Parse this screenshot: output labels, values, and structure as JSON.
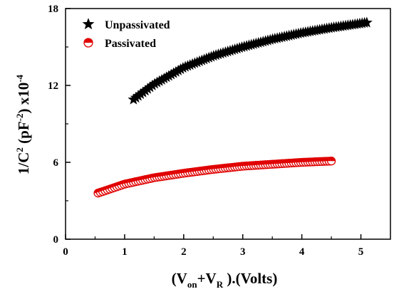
{
  "chart_data": {
    "type": "scatter",
    "xlabel": {
      "pre": "(V",
      "sub1": "on",
      "mid": "+V",
      "sub2": "R",
      "post": " ).(Volts)"
    },
    "ylabel": {
      "pre": "1/C",
      "sup1": "2",
      "mid": " (pF",
      "sup2": "-2",
      "post": ") x10",
      "sup3": "-4"
    },
    "xlim": [
      0,
      5.5
    ],
    "ylim": [
      0,
      18
    ],
    "x_ticks": [
      0,
      1,
      2,
      3,
      4,
      5
    ],
    "y_ticks": [
      0,
      6,
      12,
      18
    ],
    "grid": false,
    "legend_position": "top-left",
    "series": [
      {
        "name": "Unpassivated",
        "marker": "star",
        "color": "#000000",
        "x_start": 1.15,
        "x_end": 5.1,
        "count": 100,
        "x": [
          1.15,
          1.5,
          2.0,
          2.5,
          3.0,
          3.5,
          4.0,
          4.5,
          5.1
        ],
        "y": [
          10.9,
          12.1,
          13.4,
          14.3,
          15.0,
          15.6,
          16.1,
          16.5,
          16.9
        ]
      },
      {
        "name": "Passivated",
        "marker": "half-filled-circle",
        "color": "#e00000",
        "x_start": 0.55,
        "x_end": 4.5,
        "count": 100,
        "x": [
          0.55,
          1.0,
          1.5,
          2.0,
          2.5,
          3.0,
          3.5,
          4.0,
          4.5
        ],
        "y": [
          3.6,
          4.3,
          4.8,
          5.15,
          5.45,
          5.7,
          5.85,
          6.0,
          6.1
        ]
      }
    ]
  }
}
